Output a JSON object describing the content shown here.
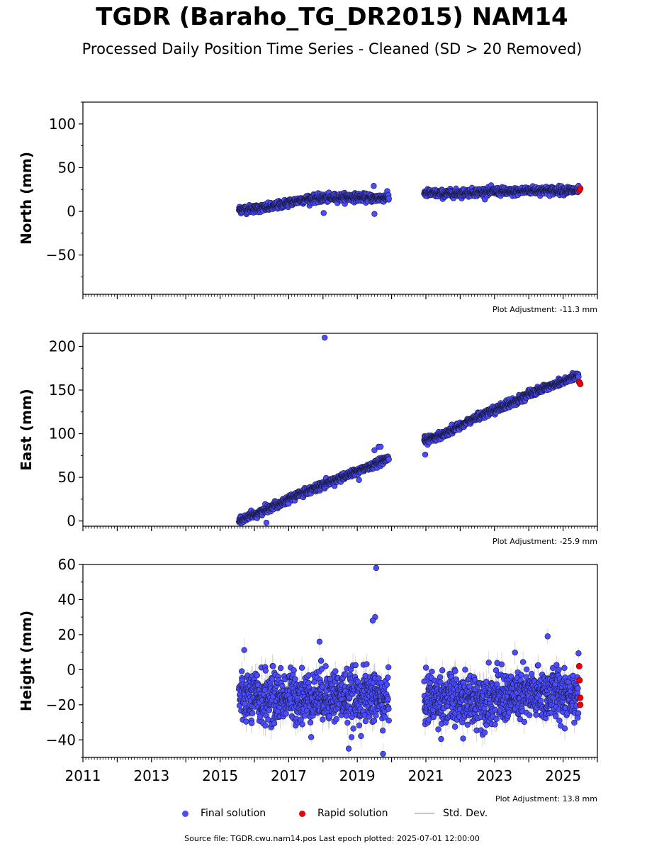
{
  "title": "TGDR (Baraho_TG_DR2015) NAM14",
  "subtitle": "Processed Daily Position Time Series - Cleaned (SD > 20 Removed)",
  "source_text": "Source file: TGDR.cwu.nam14.pos  Last epoch plotted: 2025-07-01 12:00:00",
  "legend": {
    "final_label": "Final solution",
    "rapid_label": "Rapid solution",
    "std_label": "Std. Dev."
  },
  "colors": {
    "final": "#4b4bff",
    "rapid": "#e8000b",
    "std": "#c8c8c8",
    "edge": "#1a1a40"
  },
  "chart_data": [
    {
      "type": "scatter",
      "ylabel": "North (mm)",
      "ylim": [
        -95,
        125
      ],
      "yticks": [
        -50,
        0,
        50,
        100
      ],
      "xlim": [
        2011,
        2026
      ],
      "adjustment": "Plot Adjustment: -11.3 mm",
      "series": [
        {
          "name": "Final solution",
          "segments": [
            {
              "x": [
                2015.55,
                2016.0,
                2016.5,
                2017.0,
                2017.5,
                2018.0,
                2018.5,
                2019.0,
                2019.5,
                2019.92
              ],
              "y": [
                2,
                3,
                5,
                10,
                14,
                15,
                16,
                16,
                15,
                16
              ]
            },
            {
              "x": [
                2020.95,
                2021.5,
                2022.0,
                2022.5,
                2023.0,
                2023.5,
                2024.0,
                2024.5,
                2025.0,
                2025.45
              ],
              "y": [
                21,
                20,
                21,
                22,
                23,
                22,
                24,
                24,
                24,
                24
              ]
            }
          ],
          "outliers": {
            "x": [
              2018.02,
              2019.48,
              2019.5
            ],
            "y": [
              -2,
              29,
              -3
            ]
          }
        },
        {
          "name": "Rapid solution",
          "x": [
            2025.47,
            2025.5
          ],
          "y": [
            24,
            26
          ]
        }
      ]
    },
    {
      "type": "scatter",
      "ylabel": "East (mm)",
      "ylim": [
        -6,
        215
      ],
      "yticks": [
        0,
        50,
        100,
        150,
        200
      ],
      "xlim": [
        2011,
        2026
      ],
      "adjustment": "Plot Adjustment: -25.9 mm",
      "series": [
        {
          "name": "Final solution",
          "segments": [
            {
              "x": [
                2015.55,
                2016.0,
                2016.5,
                2017.0,
                2017.5,
                2018.0,
                2018.5,
                2019.0,
                2019.5,
                2019.92
              ],
              "y": [
                0,
                7,
                16,
                25,
                34,
                41,
                49,
                57,
                64,
                71
              ]
            },
            {
              "x": [
                2020.95,
                2021.5,
                2022.0,
                2022.5,
                2023.0,
                2023.5,
                2024.0,
                2024.5,
                2025.0,
                2025.45
              ],
              "y": [
                92,
                99,
                109,
                119,
                127,
                135,
                145,
                153,
                160,
                167
              ]
            }
          ],
          "outliers": {
            "x": [
              2018.05,
              2016.35,
              2020.98,
              2019.62,
              2019.68,
              2019.5,
              2019.05
            ],
            "y": [
              210,
              -2,
              76,
              85,
              85,
              81,
              47
            ]
          }
        },
        {
          "name": "Rapid solution",
          "x": [
            2025.47,
            2025.5
          ],
          "y": [
            159,
            157
          ]
        }
      ]
    },
    {
      "type": "scatter",
      "ylabel": "Height (mm)",
      "ylim": [
        -50,
        60
      ],
      "yticks": [
        -40,
        -20,
        0,
        20,
        40,
        60
      ],
      "xlim": [
        2011,
        2026
      ],
      "xticks": [
        "2011",
        "2013",
        "2015",
        "2017",
        "2019",
        "2021",
        "2023",
        "2025"
      ],
      "adjustment": "Plot Adjustment: 13.8 mm",
      "series": [
        {
          "name": "Final solution",
          "segments": [
            {
              "x": [
                2015.55,
                2016.0,
                2016.5,
                2017.0,
                2017.5,
                2018.0,
                2018.5,
                2019.0,
                2019.5,
                2019.92
              ],
              "y": [
                -15,
                -17,
                -16,
                -15,
                -16,
                -14,
                -15,
                -16,
                -15,
                -18
              ]
            },
            {
              "x": [
                2020.95,
                2021.5,
                2022.0,
                2022.5,
                2023.0,
                2023.5,
                2024.0,
                2024.5,
                2025.0,
                2025.45
              ],
              "y": [
                -17,
                -16,
                -18,
                -17,
                -16,
                -15,
                -15,
                -14,
                -13,
                -13
              ]
            }
          ],
          "outliers": {
            "x": [
              2019.55,
              2019.52,
              2019.45,
              2017.9,
              2018.75,
              2019.75,
              2024.55
            ],
            "y": [
              58,
              30,
              28,
              16,
              -45,
              -48,
              19
            ]
          }
        },
        {
          "name": "Rapid solution",
          "x": [
            2025.47,
            2025.48,
            2025.5,
            2025.5
          ],
          "y": [
            2,
            -6,
            -16,
            -20
          ]
        }
      ]
    }
  ]
}
